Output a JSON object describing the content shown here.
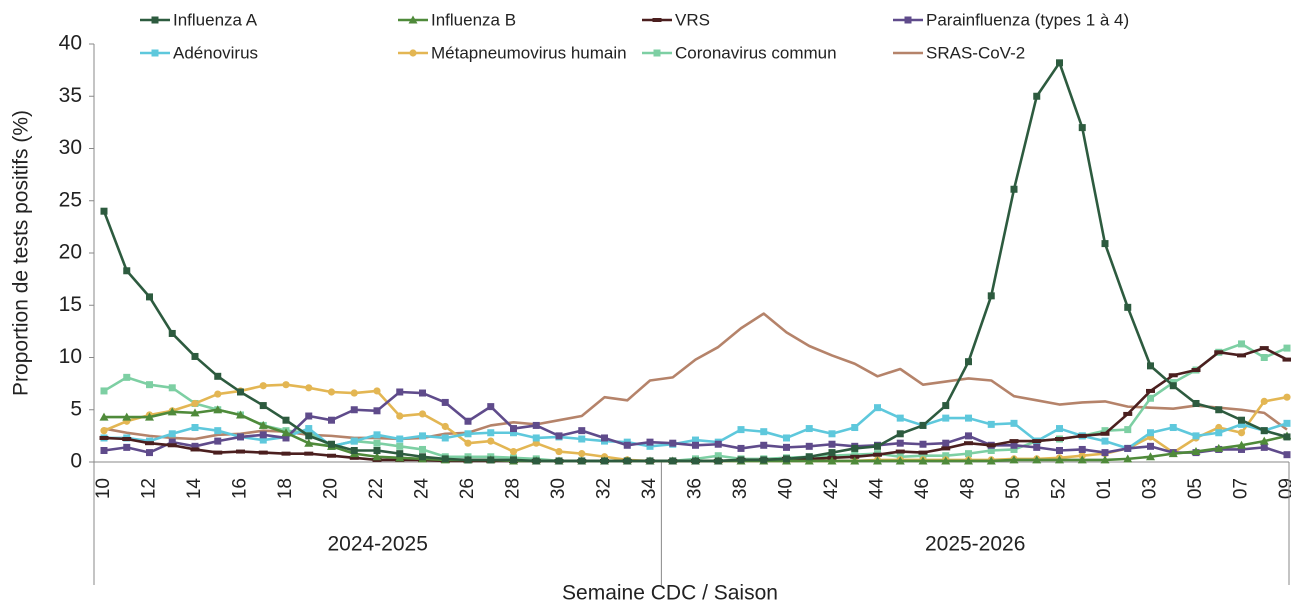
{
  "chart_data": {
    "type": "line",
    "y_label": "Proportion de tests positifs (%)",
    "x_label": "Semaine CDC / Saison",
    "categories": [
      "10",
      null,
      "12",
      null,
      "14",
      null,
      "16",
      null,
      "18",
      null,
      "20",
      null,
      "22",
      null,
      "24",
      null,
      "26",
      null,
      "28",
      null,
      "30",
      null,
      "32",
      null,
      "34",
      null,
      "36",
      null,
      "38",
      null,
      "40",
      null,
      "42",
      null,
      "44",
      null,
      "46",
      null,
      "48",
      null,
      "50",
      null,
      "52",
      null,
      "01",
      null,
      "03",
      null,
      "05",
      null,
      "07",
      null,
      "09"
    ],
    "groups": [
      {
        "label": "2024-2025",
        "count": 25
      },
      {
        "label": "2025-2026",
        "count": 28
      }
    ],
    "ylim": [
      0,
      40
    ],
    "yticks": [
      0,
      5,
      10,
      15,
      20,
      25,
      30,
      35,
      40
    ],
    "grid": false,
    "series": [
      {
        "name": "Influenza A",
        "color": "#2d5b3f",
        "marker": "square",
        "values": [
          24.0,
          18.3,
          15.8,
          12.3,
          10.1,
          8.2,
          6.7,
          5.4,
          4.0,
          2.5,
          1.7,
          1.1,
          1.1,
          0.8,
          0.5,
          0.3,
          0.2,
          0.2,
          0.2,
          0.1,
          0.1,
          0.1,
          0.1,
          0.1,
          0.1,
          0.1,
          0.1,
          0.1,
          0.2,
          0.2,
          0.3,
          0.5,
          0.9,
          1.3,
          1.5,
          2.7,
          3.5,
          5.4,
          9.6,
          15.9,
          26.1,
          35.0,
          38.2,
          32.0,
          20.9,
          14.8,
          9.2,
          7.3,
          5.6,
          5.0,
          4.0,
          3.0,
          2.4
        ]
      },
      {
        "name": "Influenza B",
        "color": "#4f8a3a",
        "marker": "triangle",
        "values": [
          4.3,
          4.3,
          4.3,
          4.8,
          4.7,
          5.0,
          4.5,
          3.5,
          2.8,
          1.8,
          1.5,
          0.8,
          0.5,
          0.4,
          0.3,
          0.2,
          0.2,
          0.2,
          0.1,
          0.1,
          0.1,
          0.1,
          0.1,
          0.1,
          0.1,
          0.1,
          0.1,
          0.1,
          0.1,
          0.1,
          0.1,
          0.1,
          0.1,
          0.1,
          0.1,
          0.1,
          0.1,
          0.1,
          0.1,
          0.1,
          0.2,
          0.2,
          0.2,
          0.2,
          0.2,
          0.3,
          0.5,
          0.8,
          1.0,
          1.3,
          1.6,
          2.0,
          2.5
        ]
      },
      {
        "name": "VRS",
        "color": "#4b1f1f",
        "marker": "dash",
        "values": [
          2.3,
          2.2,
          1.8,
          1.6,
          1.2,
          0.9,
          1.0,
          0.9,
          0.8,
          0.8,
          0.6,
          0.4,
          0.2,
          0.2,
          0.2,
          0.1,
          0.1,
          0.1,
          0.1,
          0.1,
          0.1,
          0.1,
          0.1,
          0.1,
          0.1,
          0.1,
          0.1,
          0.1,
          0.2,
          0.2,
          0.3,
          0.3,
          0.4,
          0.5,
          0.7,
          1.0,
          0.9,
          1.3,
          1.8,
          1.6,
          2.0,
          2.0,
          2.2,
          2.5,
          2.7,
          4.6,
          6.8,
          8.3,
          8.8,
          10.5,
          10.2,
          10.9,
          9.8
        ]
      },
      {
        "name": "Parainfluenza (types 1 à 4)",
        "color": "#5f4b8b",
        "marker": "square",
        "values": [
          1.1,
          1.4,
          0.9,
          1.9,
          1.5,
          2.0,
          2.4,
          2.6,
          2.3,
          4.4,
          4.0,
          5.0,
          4.9,
          6.7,
          6.6,
          5.7,
          3.9,
          5.3,
          3.2,
          3.5,
          2.5,
          3.0,
          2.3,
          1.6,
          1.9,
          1.8,
          1.6,
          1.7,
          1.3,
          1.6,
          1.4,
          1.5,
          1.7,
          1.5,
          1.6,
          1.8,
          1.7,
          1.8,
          2.5,
          1.6,
          1.6,
          1.4,
          1.1,
          1.2,
          0.9,
          1.3,
          1.5,
          0.9,
          0.9,
          1.2,
          1.2,
          1.4,
          0.7
        ]
      },
      {
        "name": "Adénovirus",
        "color": "#5ec8dc",
        "marker": "square",
        "values": [
          2.3,
          2.3,
          2.0,
          2.7,
          3.3,
          3.0,
          2.4,
          2.1,
          2.4,
          3.2,
          1.5,
          2.0,
          2.6,
          2.2,
          2.5,
          2.3,
          2.7,
          2.8,
          2.8,
          2.3,
          2.4,
          2.2,
          2.0,
          1.9,
          1.5,
          1.7,
          2.1,
          1.9,
          3.1,
          2.9,
          2.3,
          3.2,
          2.7,
          3.3,
          5.2,
          4.2,
          3.5,
          4.2,
          4.2,
          3.6,
          3.7,
          2.0,
          3.2,
          2.5,
          2.0,
          1.3,
          2.8,
          3.3,
          2.5,
          2.8,
          3.6,
          3.0,
          3.7
        ]
      },
      {
        "name": "Métapneumovirus humain",
        "color": "#e3b653",
        "marker": "circle",
        "values": [
          3.0,
          3.9,
          4.5,
          4.9,
          5.6,
          6.5,
          6.8,
          7.3,
          7.4,
          7.1,
          6.7,
          6.6,
          6.8,
          4.4,
          4.6,
          3.4,
          1.8,
          2.0,
          1.0,
          1.8,
          1.0,
          0.8,
          0.5,
          0.2,
          0.1,
          0.1,
          0.1,
          0.1,
          0.1,
          0.1,
          0.1,
          0.1,
          0.1,
          0.1,
          0.2,
          0.2,
          0.2,
          0.2,
          0.2,
          0.2,
          0.3,
          0.3,
          0.4,
          0.6,
          0.8,
          1.3,
          2.4,
          0.9,
          2.3,
          3.3,
          2.8,
          5.8,
          6.2
        ]
      },
      {
        "name": "Coronavirus commun",
        "color": "#7dcfa3",
        "marker": "square",
        "values": [
          6.8,
          8.1,
          7.4,
          7.1,
          5.6,
          5.0,
          4.5,
          3.5,
          3.0,
          2.8,
          1.5,
          2.0,
          1.8,
          1.5,
          1.2,
          0.5,
          0.5,
          0.5,
          0.4,
          0.3,
          0.1,
          0.1,
          0.1,
          0.1,
          0.1,
          0.1,
          0.3,
          0.6,
          0.3,
          0.3,
          0.4,
          0.5,
          0.6,
          0.7,
          0.8,
          0.5,
          0.6,
          0.6,
          0.8,
          1.1,
          1.2,
          2.0,
          2.2,
          2.5,
          3.0,
          3.1,
          6.1,
          7.6,
          8.8,
          10.5,
          11.3,
          10.0,
          10.9
        ]
      },
      {
        "name": "SRAS-CoV-2",
        "color": "#b5836a",
        "marker": "none",
        "values": [
          3.2,
          2.8,
          2.5,
          2.3,
          2.2,
          2.6,
          2.7,
          3.0,
          2.9,
          2.6,
          2.5,
          2.3,
          2.3,
          2.2,
          2.3,
          2.7,
          2.8,
          3.5,
          3.8,
          3.6,
          4.0,
          4.4,
          6.2,
          5.9,
          7.8,
          8.1,
          9.8,
          11.0,
          12.8,
          14.2,
          12.4,
          11.1,
          10.2,
          9.4,
          8.2,
          8.9,
          7.4,
          7.7,
          8.0,
          7.8,
          6.3,
          5.9,
          5.5,
          5.7,
          5.8,
          5.3,
          5.2,
          5.1,
          5.4,
          5.2,
          5.0,
          4.7,
          3.1
        ]
      }
    ]
  }
}
